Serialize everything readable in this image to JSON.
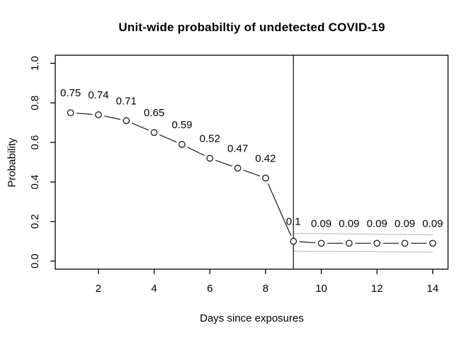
{
  "title": "Unit-wide probabiltiy of undetected COVID-19",
  "colors": {
    "background": "#ffffff",
    "series": "#1a1a1a",
    "axis": "#000000",
    "reference_line": "#1f1f1f",
    "ci_band": "#c4c4c4"
  },
  "chart_data": {
    "type": "line",
    "title": "Unit-wide probabiltiy of undetected COVID-19",
    "xlabel": "Days since exposures",
    "ylabel": "Probability",
    "x": [
      1,
      2,
      3,
      4,
      5,
      6,
      7,
      8,
      9,
      10,
      11,
      12,
      13,
      14
    ],
    "values": [
      0.75,
      0.74,
      0.71,
      0.65,
      0.59,
      0.52,
      0.47,
      0.42,
      0.1,
      0.09,
      0.09,
      0.09,
      0.09,
      0.09
    ],
    "point_labels": [
      "0.75",
      "0.74",
      "0.71",
      "0.65",
      "0.59",
      "0.52",
      "0.47",
      "0.42",
      "0.1",
      "0.09",
      "0.09",
      "0.09",
      "0.09",
      "0.09"
    ],
    "x_ticks": [
      2,
      4,
      6,
      8,
      10,
      12,
      14
    ],
    "x_tick_labels": [
      "2",
      "4",
      "6",
      "8",
      "10",
      "12",
      "14"
    ],
    "y_ticks": [
      0.0,
      0.2,
      0.4,
      0.6,
      0.8,
      1.0
    ],
    "y_tick_labels": [
      "0.0",
      "0.2",
      "0.4",
      "0.6",
      "0.8",
      "1.0"
    ],
    "xlim": [
      0.45,
      14.55
    ],
    "ylim": [
      -0.041,
      1.041
    ],
    "grid": false,
    "legend": null,
    "marker": "open-circle",
    "line_style": "segments-between-points",
    "vline_x": 9,
    "ci_band": {
      "x_start": 9,
      "x_end": 14,
      "upper_start": 0.14,
      "upper_end": 0.133,
      "lower_start": 0.05,
      "lower_end": 0.045
    }
  }
}
